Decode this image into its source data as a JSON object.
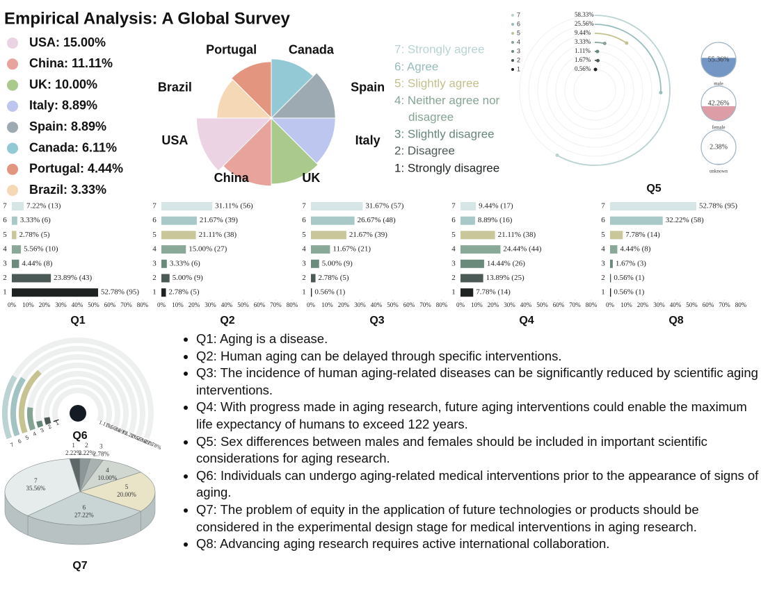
{
  "title": "Empirical Analysis: A Global Survey",
  "scale": {
    "labels": [
      "7: Strongly agree",
      "6: Agree",
      "5: Slightly agree",
      "4: Neither agree nor disagree",
      "3: Slightly disagree",
      "2: Disagree",
      "1: Strongly disagree"
    ],
    "colors": [
      "#b9d3d3",
      "#97bcbc",
      "#c3c08e",
      "#86a494",
      "#67877a",
      "#4b5a56",
      "#1e2321"
    ]
  },
  "chart_data": [
    {
      "type": "pie",
      "categories": [
        "USA",
        "China",
        "UK",
        "Italy",
        "Spain",
        "Canada",
        "Portugal",
        "Brazil"
      ],
      "values": [
        15.0,
        11.11,
        10.0,
        8.89,
        8.89,
        6.11,
        4.44,
        3.33
      ],
      "value_labels": [
        "USA: 15.00%",
        "China: 11.11%",
        "UK: 10.00%",
        "Italy: 8.89%",
        "Spain: 8.89%",
        "Canada: 6.11%",
        "Portugal: 4.44%",
        "Brazil: 3.33%"
      ],
      "colors": [
        "#ecd3e3",
        "#e7a39c",
        "#a9ca8c",
        "#bcc6ee",
        "#9eaab2",
        "#92c9d5",
        "#e39580",
        "#f5d8b6"
      ]
    },
    {
      "type": "bar",
      "title": "Q1",
      "categories": [
        "7",
        "6",
        "5",
        "4",
        "3",
        "2",
        "1"
      ],
      "values": [
        7.22,
        3.33,
        2.78,
        5.56,
        4.44,
        23.89,
        52.78
      ],
      "value_labels": [
        "7.22% (13)",
        "3.33% (6)",
        "2.78% (5)",
        "5.56% (10)",
        "4.44% (8)",
        "23.89% (43)",
        "52.78% (95)"
      ],
      "xlim": [
        0,
        80
      ],
      "xticks": [
        {
          "value": 0,
          "label": "0%"
        },
        {
          "value": 10,
          "label": "10%"
        },
        {
          "value": 20,
          "label": "20%"
        },
        {
          "value": 30,
          "label": "30%"
        },
        {
          "value": 40,
          "label": "40%"
        },
        {
          "value": 50,
          "label": "50%"
        },
        {
          "value": 60,
          "label": "60%"
        },
        {
          "value": 70,
          "label": "70%"
        },
        {
          "value": 80,
          "label": "80%"
        }
      ],
      "colors": [
        "#d6e6e6",
        "#a9c9c9",
        "#c9c79a",
        "#8aa898",
        "#6a8a7c",
        "#4b5a56",
        "#1e2321"
      ]
    },
    {
      "type": "bar",
      "title": "Q2",
      "categories": [
        "7",
        "6",
        "5",
        "4",
        "3",
        "2",
        "1"
      ],
      "values": [
        31.11,
        21.67,
        21.11,
        15.0,
        3.33,
        5.0,
        2.78
      ],
      "value_labels": [
        "31.11% (56)",
        "21.67% (39)",
        "21.11% (38)",
        "15.00% (27)",
        "3.33% (6)",
        "5.00% (9)",
        "2.78% (5)"
      ],
      "xlim": [
        0,
        80
      ],
      "xticks": [
        {
          "value": 0,
          "label": "0%"
        },
        {
          "value": 10,
          "label": "10%"
        },
        {
          "value": 20,
          "label": "20%"
        },
        {
          "value": 30,
          "label": "30%"
        },
        {
          "value": 40,
          "label": "40%"
        },
        {
          "value": 50,
          "label": "50%"
        },
        {
          "value": 60,
          "label": "60%"
        },
        {
          "value": 70,
          "label": "70%"
        },
        {
          "value": 80,
          "label": "80%"
        }
      ],
      "colors": [
        "#d6e6e6",
        "#a9c9c9",
        "#c9c79a",
        "#8aa898",
        "#6a8a7c",
        "#4b5a56",
        "#1e2321"
      ]
    },
    {
      "type": "bar",
      "title": "Q3",
      "categories": [
        "7",
        "6",
        "5",
        "4",
        "3",
        "2",
        "1"
      ],
      "values": [
        31.67,
        26.67,
        21.67,
        11.67,
        5.0,
        2.78,
        0.56
      ],
      "value_labels": [
        "31.67% (57)",
        "26.67% (48)",
        "21.67% (39)",
        "11.67% (21)",
        "5.00% (9)",
        "2.78% (5)",
        "0.56% (1)"
      ],
      "xlim": [
        0,
        80
      ],
      "xticks": [
        {
          "value": 0,
          "label": "0%"
        },
        {
          "value": 10,
          "label": "10%"
        },
        {
          "value": 20,
          "label": "20%"
        },
        {
          "value": 30,
          "label": "30%"
        },
        {
          "value": 40,
          "label": "40%"
        },
        {
          "value": 50,
          "label": "50%"
        },
        {
          "value": 60,
          "label": "60%"
        },
        {
          "value": 70,
          "label": "70%"
        },
        {
          "value": 80,
          "label": "80%"
        }
      ],
      "colors": [
        "#d6e6e6",
        "#a9c9c9",
        "#c9c79a",
        "#8aa898",
        "#6a8a7c",
        "#4b5a56",
        "#1e2321"
      ]
    },
    {
      "type": "bar",
      "title": "Q4",
      "categories": [
        "7",
        "6",
        "5",
        "4",
        "3",
        "2",
        "1"
      ],
      "values": [
        9.44,
        8.89,
        21.11,
        24.44,
        14.44,
        13.89,
        7.78
      ],
      "value_labels": [
        "9.44% (17)",
        "8.89% (16)",
        "21.11% (38)",
        "24.44% (44)",
        "14.44% (26)",
        "13.89% (25)",
        "7.78% (14)"
      ],
      "xlim": [
        0,
        80
      ],
      "xticks": [
        {
          "value": 0,
          "label": "0%"
        },
        {
          "value": 10,
          "label": "10%"
        },
        {
          "value": 20,
          "label": "20%"
        },
        {
          "value": 30,
          "label": "30%"
        },
        {
          "value": 40,
          "label": "40%"
        },
        {
          "value": 50,
          "label": "50%"
        },
        {
          "value": 60,
          "label": "60%"
        },
        {
          "value": 70,
          "label": "70%"
        },
        {
          "value": 80,
          "label": "80%"
        }
      ],
      "colors": [
        "#d6e6e6",
        "#a9c9c9",
        "#c9c79a",
        "#8aa898",
        "#6a8a7c",
        "#4b5a56",
        "#1e2321"
      ]
    },
    {
      "type": "bar",
      "title": "Q8",
      "categories": [
        "7",
        "6",
        "5",
        "4",
        "3",
        "2",
        "1"
      ],
      "values": [
        52.78,
        32.22,
        7.78,
        4.44,
        1.67,
        0.56,
        0.56
      ],
      "value_labels": [
        "52.78% (95)",
        "32.22% (58)",
        "7.78% (14)",
        "4.44% (8)",
        "1.67% (3)",
        "0.56% (1)",
        "0.56% (1)"
      ],
      "xlim": [
        0,
        80
      ],
      "xticks": [
        {
          "value": 0,
          "label": "0%"
        },
        {
          "value": 10,
          "label": "10%"
        },
        {
          "value": 20,
          "label": "20%"
        },
        {
          "value": 30,
          "label": "30%"
        },
        {
          "value": 40,
          "label": "40%"
        },
        {
          "value": 50,
          "label": "50%"
        },
        {
          "value": 60,
          "label": "60%"
        },
        {
          "value": 70,
          "label": "70%"
        },
        {
          "value": 80,
          "label": "80%"
        }
      ],
      "colors": [
        "#d6e6e6",
        "#a9c9c9",
        "#c9c79a",
        "#8aa898",
        "#6a8a7c",
        "#4b5a56",
        "#1e2321"
      ]
    },
    {
      "type": "radial_bar",
      "title": "Q5",
      "categories": [
        "7",
        "6",
        "5",
        "4",
        "3",
        "2",
        "1"
      ],
      "values": [
        58.33,
        25.56,
        9.44,
        3.33,
        1.11,
        1.67,
        0.56
      ],
      "value_labels": [
        "58.33%",
        "25.56%",
        "9.44%",
        "3.33%",
        "1.11%",
        "1.67%",
        "0.56%"
      ],
      "ylim": [
        0,
        100
      ],
      "colors": [
        "#b9d3d3",
        "#97bcbc",
        "#c3c08e",
        "#86a494",
        "#67877a",
        "#4b5a56",
        "#1e2321"
      ]
    },
    {
      "type": "gauge",
      "categories": [
        "male",
        "female",
        "unknown"
      ],
      "values": [
        55.36,
        42.26,
        2.38
      ],
      "value_labels": [
        "55.36%",
        "42.26%",
        "2.38%"
      ],
      "ylim": [
        0,
        100
      ],
      "colors": [
        "#5c84ba",
        "#d68c97",
        "#9aa4aa"
      ]
    },
    {
      "type": "radial_bar",
      "title": "Q6",
      "categories": [
        "7",
        "6",
        "5",
        "4",
        "3",
        "2",
        "1"
      ],
      "values": [
        22.78,
        23.89,
        30.56,
        12.22,
        3.89,
        5.56,
        1.11
      ],
      "value_labels": [
        "22.78%",
        "23.89%",
        "30.56%",
        "12.22%",
        "3.89%",
        "5.56%",
        "1.11%"
      ],
      "ylim": [
        0,
        100
      ],
      "colors": [
        "#bcd3d3",
        "#a3c2c2",
        "#c6c292",
        "#86a494",
        "#67877a",
        "#4b5a56",
        "#1e2321"
      ]
    },
    {
      "type": "pie3d",
      "title": "Q7",
      "categories": [
        "1",
        "2",
        "3",
        "4",
        "5",
        "6",
        "7"
      ],
      "values": [
        2.22,
        2.22,
        2.78,
        10.0,
        20.0,
        27.22,
        35.56
      ],
      "value_labels": [
        "2.22%",
        "2.22%",
        "2.78%",
        "10.00%",
        "20.00%",
        "27.22%",
        "35.56%"
      ],
      "colors": [
        "#5f6868",
        "#8e9797",
        "#aab1b1",
        "#cfd7d0",
        "#e9e4c8",
        "#c9d5d5",
        "#e6ecec"
      ]
    }
  ],
  "notes": [
    "Q1: Aging is a disease.",
    "Q2: Human aging can be delayed through specific interventions.",
    "Q3: The incidence of human aging-related diseases can be significantly reduced by scientific aging interventions.",
    "Q4: With progress made in aging research, future aging interventions could enable the maximum life expectancy of humans to exceed 122 years.",
    "Q5: Sex differences between males and females should be included in important scientific considerations for aging research.",
    "Q6: Individuals can undergo aging-related medical interventions prior to the appearance of signs of aging.",
    "Q7: The problem of equity in the application of future technologies or products should be considered in the experimental design stage for medical interventions in aging research.",
    "Q8: Advancing aging research requires active international collaboration."
  ]
}
